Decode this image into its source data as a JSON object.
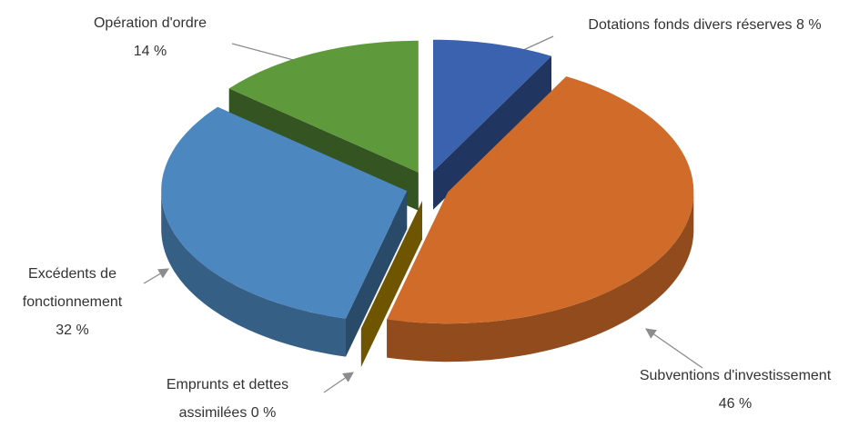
{
  "chart_data": {
    "type": "pie3d",
    "categories": [
      "Dotations fonds divers réserves",
      "Subventions d'investissement",
      "Emprunts et dettes assimilées",
      "Excédents de fonctionnement",
      "Opération d'ordre"
    ],
    "values": [
      8,
      46,
      0,
      32,
      14
    ],
    "value_labels": [
      "8 %",
      "46 %",
      "0 %",
      "32 %",
      "14 %"
    ],
    "colors": [
      "#3a62ae",
      "#d06b29",
      "#c99a00",
      "#4d87c0",
      "#5e9a3c"
    ]
  }
}
